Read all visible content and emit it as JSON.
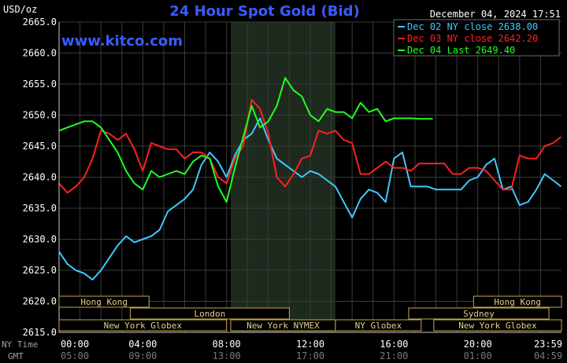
{
  "chart_data": {
    "type": "line",
    "title": "24 Hour Spot Gold (Bid)",
    "date_time": "December 04, 2024 17:51",
    "watermark": "www.kitco.com",
    "ylabel": "USD/oz",
    "ylim": [
      2615,
      2665
    ],
    "ytick_labels": [
      "2665.0",
      "2660.0",
      "2655.0",
      "2650.0",
      "2645.0",
      "2640.0",
      "2635.0",
      "2630.0",
      "2625.0",
      "2620.0",
      "2615.0"
    ],
    "xlim_hours": [
      0,
      24
    ],
    "xtick_ny_labels": [
      "00:00",
      "04:00",
      "08:00",
      "12:00",
      "16:00",
      "20:00",
      "23:59"
    ],
    "xtick_gmt_labels": [
      "05:00",
      "09:00",
      "13:00",
      "17:00",
      "21:00",
      "01:00",
      "04:59"
    ],
    "x_row_labels": {
      "ny": "NY Time",
      "gmt": "GMT"
    },
    "shaded_hours": [
      8.2,
      13.2
    ],
    "grid": true,
    "legend_position": "top-right",
    "legend": [
      {
        "label": "Dec 02 NY close 2638.00",
        "color": "#40c8ff"
      },
      {
        "label": "Dec 03 NY close 2642.20",
        "color": "#ff2020"
      },
      {
        "label": "Dec 04 Last 2649.40",
        "color": "#20ff20"
      }
    ],
    "sessions": [
      {
        "name": "Hong Kong",
        "start": 0.0,
        "end": 4.3,
        "row": 0
      },
      {
        "name": "Hong Kong",
        "start": 19.8,
        "end": 24.0,
        "row": 0
      },
      {
        "name": "London",
        "start": 3.4,
        "end": 11.0,
        "row": 1
      },
      {
        "name": "Sydney",
        "start": 16.7,
        "end": 23.4,
        "row": 1
      },
      {
        "name": "New York Globex",
        "start": 0.0,
        "end": 8.0,
        "row": 2
      },
      {
        "name": "New York NYMEX",
        "start": 8.2,
        "end": 13.2,
        "row": 2
      },
      {
        "name": "NY Globex",
        "start": 13.2,
        "end": 17.3,
        "row": 2
      },
      {
        "name": "New York Globex",
        "start": 17.9,
        "end": 24.0,
        "row": 2
      }
    ],
    "series": [
      {
        "name": "Dec 02 NY close 2638.00",
        "color": "#40c8ff",
        "x": [
          0,
          0.4,
          0.8,
          1.2,
          1.6,
          2.0,
          2.4,
          2.8,
          3.2,
          3.6,
          4.0,
          4.4,
          4.8,
          5.2,
          5.6,
          6.0,
          6.4,
          6.8,
          7.2,
          7.6,
          8.0,
          8.4,
          8.8,
          9.2,
          9.6,
          10.0,
          10.4,
          10.8,
          11.2,
          11.6,
          12.0,
          12.4,
          12.8,
          13.2,
          13.6,
          14.0,
          14.4,
          14.8,
          15.2,
          15.6,
          16.0,
          16.4,
          16.8,
          17.2,
          17.6,
          18.0,
          18.4,
          18.8,
          19.2,
          19.6,
          20.0,
          20.4,
          20.8,
          21.2,
          21.6,
          22.0,
          22.4,
          22.8,
          23.2,
          23.6,
          23.98
        ],
        "y": [
          2628.0,
          2626.0,
          2625.0,
          2624.5,
          2623.5,
          2625.0,
          2627.0,
          2629.0,
          2630.5,
          2629.5,
          2630.0,
          2630.5,
          2631.5,
          2634.5,
          2635.5,
          2636.5,
          2638.0,
          2642.0,
          2644.0,
          2642.5,
          2640.0,
          2643.5,
          2646.0,
          2647.0,
          2649.5,
          2646.0,
          2643.0,
          2642.0,
          2641.0,
          2640.0,
          2641.0,
          2640.5,
          2639.5,
          2638.5,
          2636.0,
          2633.5,
          2636.5,
          2638.0,
          2637.5,
          2636.0,
          2643.0,
          2644.0,
          2638.5,
          2638.5,
          2638.5,
          2638.0,
          2638.0,
          2638.0,
          2638.0,
          2639.5,
          2640.0,
          2642.0,
          2643.0,
          2638.0,
          2638.5,
          2635.5,
          2636.0,
          2638.0,
          2640.5,
          2639.5,
          2638.5
        ]
      },
      {
        "name": "Dec 03 NY close 2642.20",
        "color": "#ff2020",
        "x": [
          0,
          0.4,
          0.8,
          1.2,
          1.6,
          2.0,
          2.4,
          2.8,
          3.2,
          3.6,
          4.0,
          4.4,
          4.8,
          5.2,
          5.6,
          6.0,
          6.4,
          6.8,
          7.2,
          7.6,
          8.0,
          8.4,
          8.8,
          9.2,
          9.6,
          10.0,
          10.4,
          10.8,
          11.2,
          11.6,
          12.0,
          12.4,
          12.8,
          13.2,
          13.6,
          14.0,
          14.4,
          14.8,
          15.2,
          15.6,
          16.0,
          16.4,
          16.8,
          17.2,
          17.6,
          18.0,
          18.4,
          18.8,
          19.2,
          19.6,
          20.0,
          20.4,
          20.8,
          21.2,
          21.6,
          22.0,
          22.4,
          22.8,
          23.2,
          23.6,
          23.98
        ],
        "y": [
          2639.0,
          2637.5,
          2638.5,
          2640.0,
          2643.0,
          2647.5,
          2647.0,
          2646.0,
          2647.0,
          2644.5,
          2641.0,
          2645.5,
          2645.0,
          2644.5,
          2644.5,
          2643.0,
          2644.0,
          2644.0,
          2643.0,
          2640.0,
          2639.0,
          2643.0,
          2645.0,
          2652.5,
          2651.0,
          2647.0,
          2640.0,
          2638.5,
          2640.5,
          2643.0,
          2643.5,
          2647.5,
          2647.0,
          2647.5,
          2646.0,
          2645.5,
          2640.5,
          2640.5,
          2641.5,
          2642.5,
          2641.5,
          2641.5,
          2641.0,
          2642.2,
          2642.2,
          2642.2,
          2642.2,
          2640.5,
          2640.5,
          2641.5,
          2641.5,
          2641.0,
          2639.5,
          2638.0,
          2638.0,
          2643.5,
          2643.0,
          2643.0,
          2645.0,
          2645.5,
          2646.5
        ]
      },
      {
        "name": "Dec 04 Last 2649.40",
        "color": "#20ff20",
        "x": [
          0,
          0.4,
          0.8,
          1.2,
          1.6,
          2.0,
          2.4,
          2.8,
          3.2,
          3.6,
          4.0,
          4.4,
          4.8,
          5.2,
          5.6,
          6.0,
          6.4,
          6.8,
          7.2,
          7.6,
          8.0,
          8.4,
          8.8,
          9.2,
          9.6,
          10.0,
          10.4,
          10.8,
          11.2,
          11.6,
          12.0,
          12.4,
          12.8,
          13.2,
          13.6,
          14.0,
          14.4,
          14.8,
          15.2,
          15.6,
          16.0,
          16.4,
          16.8,
          17.2,
          17.6,
          17.85
        ],
        "y": [
          2647.5,
          2648.0,
          2648.5,
          2649.0,
          2649.0,
          2648.0,
          2646.0,
          2644.0,
          2641.0,
          2639.0,
          2638.0,
          2641.0,
          2640.0,
          2640.5,
          2641.0,
          2640.5,
          2642.5,
          2643.5,
          2643.0,
          2638.5,
          2636.0,
          2641.5,
          2646.5,
          2651.5,
          2648.0,
          2649.0,
          2651.5,
          2656.0,
          2654.0,
          2653.0,
          2650.0,
          2649.0,
          2651.0,
          2650.5,
          2650.5,
          2649.5,
          2652.0,
          2650.5,
          2651.0,
          2649.0,
          2649.5,
          2649.5,
          2649.5,
          2649.4,
          2649.4,
          2649.4
        ]
      }
    ]
  }
}
